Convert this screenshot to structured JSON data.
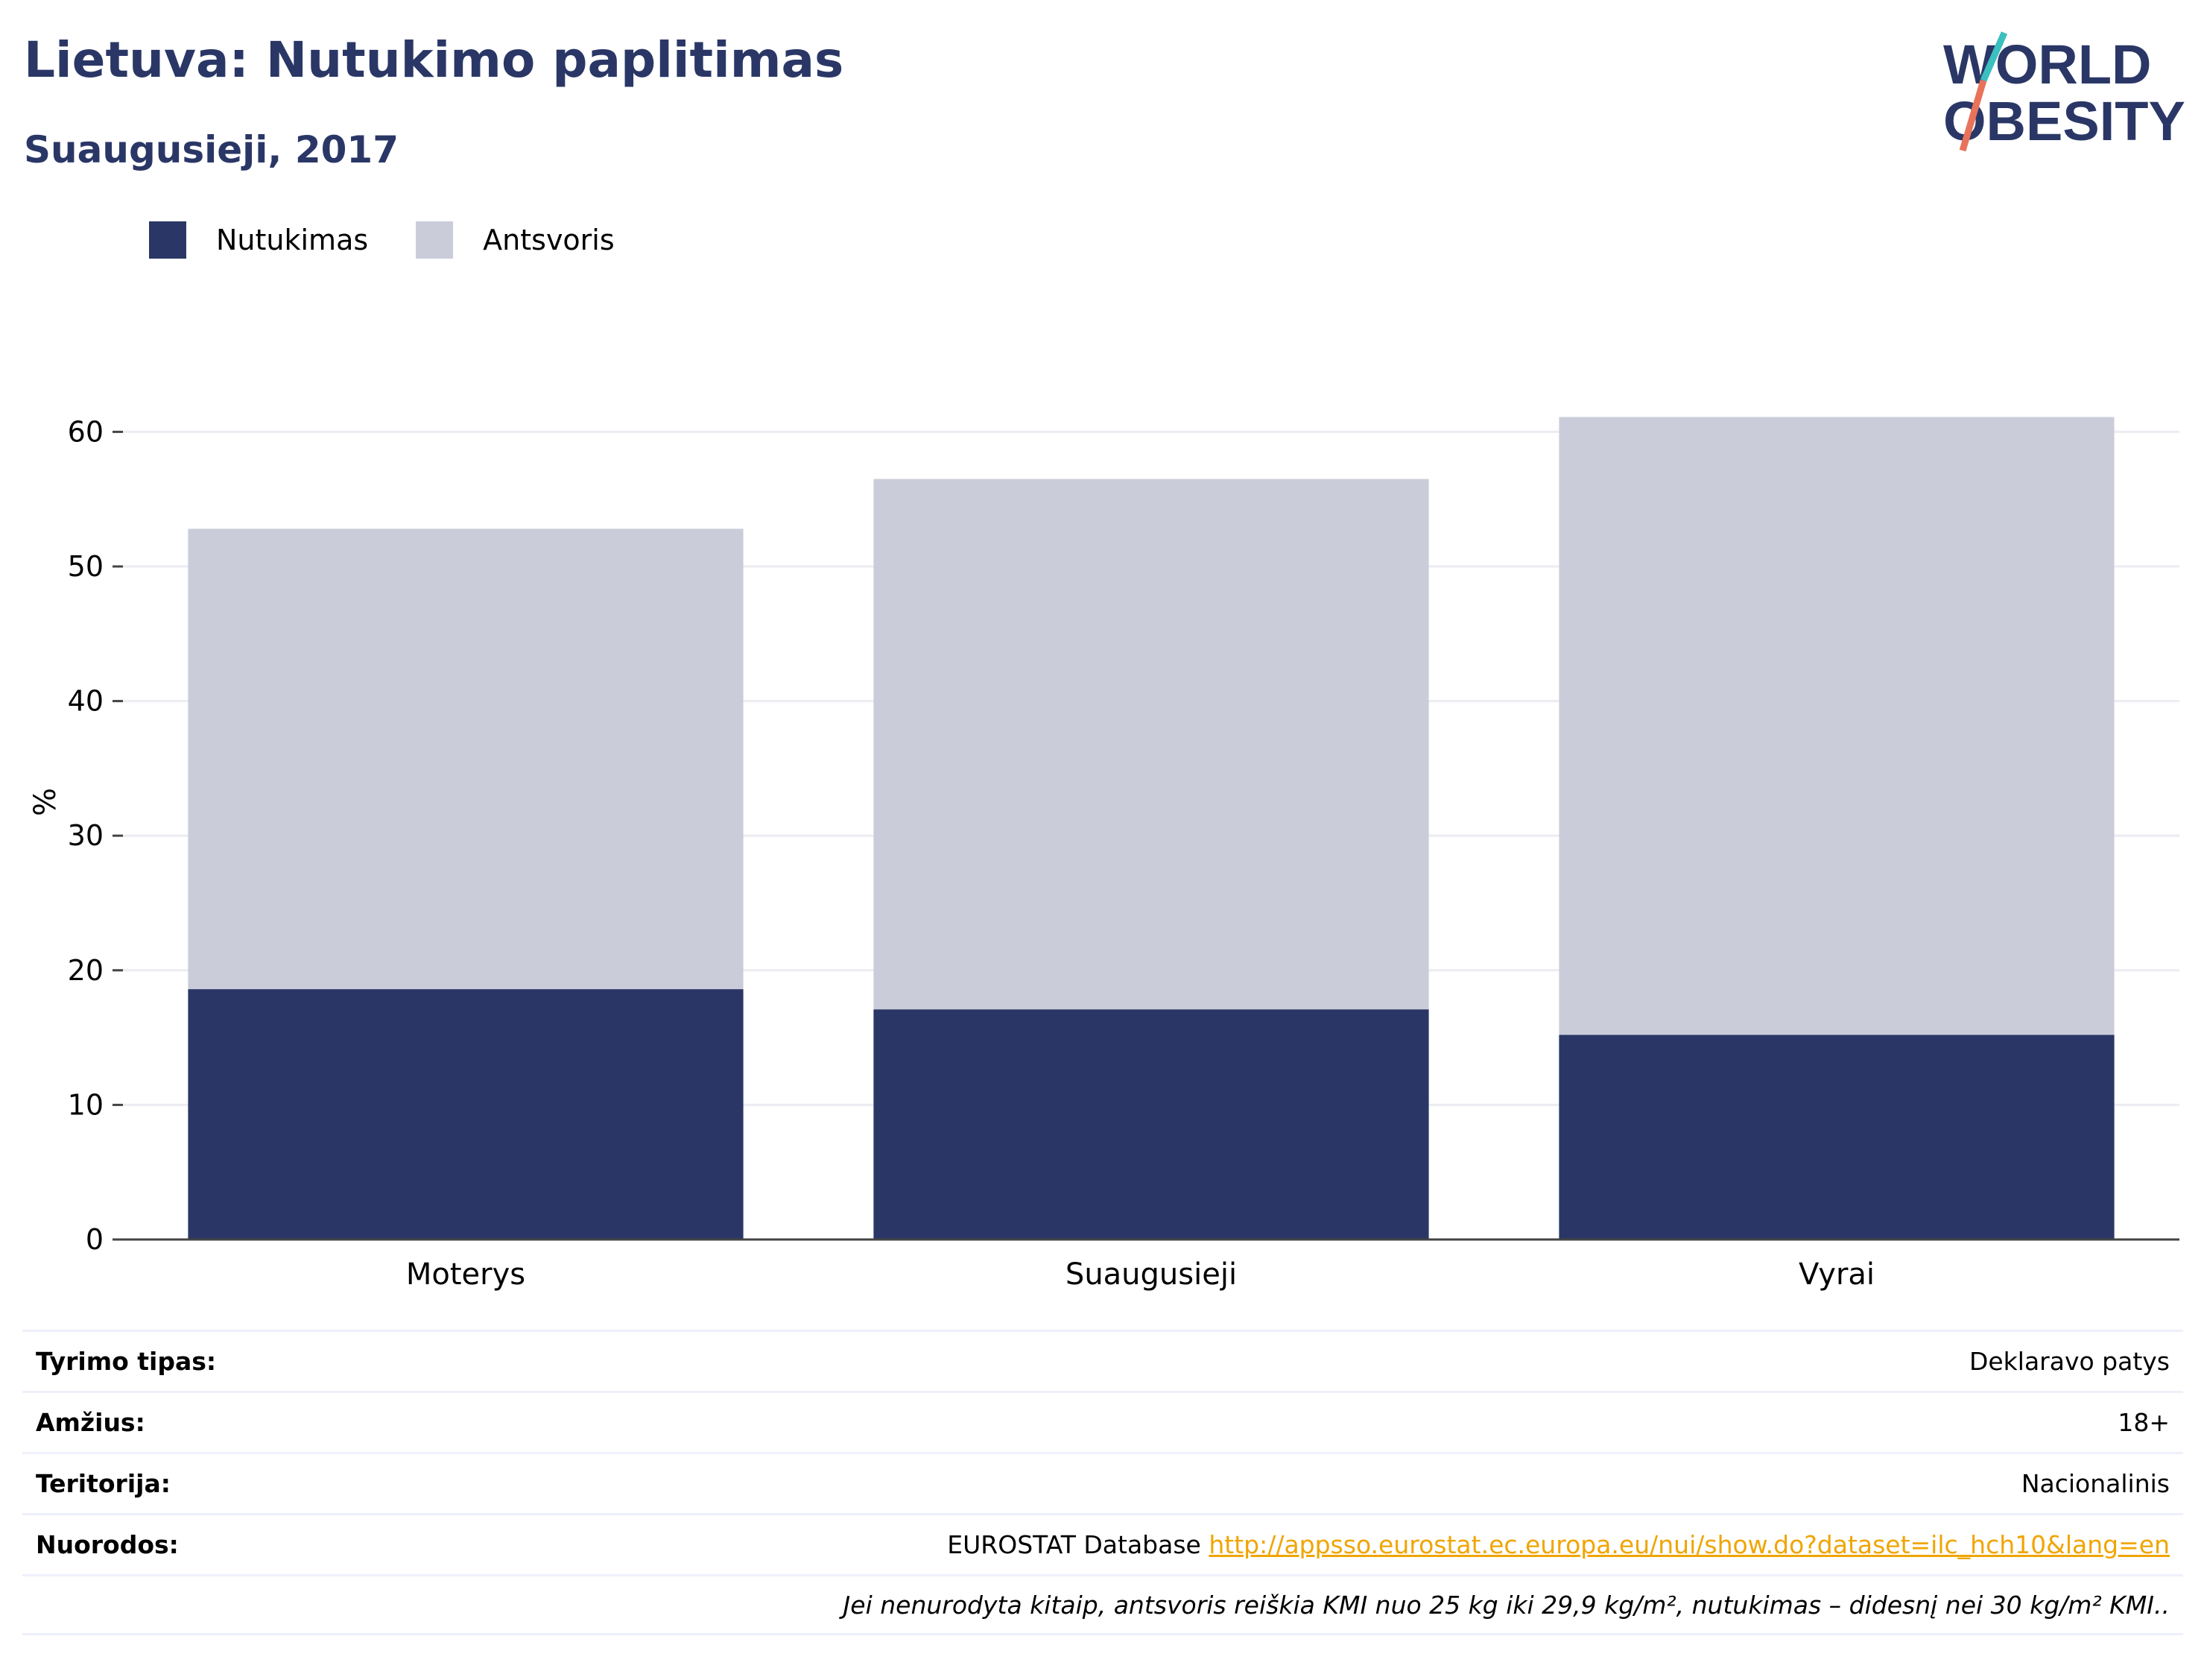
{
  "header": {
    "title": "Lietuva: Nutukimo paplitimas",
    "subtitle": "Suaugusieji, 2017"
  },
  "logo": {
    "line1": "WORLD",
    "line2": "OBESITY",
    "colors": {
      "text": "#2a3766",
      "slash_top": "#3bbfbf",
      "slash_bottom": "#e8735a"
    }
  },
  "legend": [
    {
      "label": "Nutukimas",
      "color": "#2a3766"
    },
    {
      "label": "Antsvoris",
      "color": "#cacdd9"
    }
  ],
  "chart_data": {
    "type": "bar",
    "stacked": true,
    "categories": [
      "Moterys",
      "Suaugusieji",
      "Vyrai"
    ],
    "series": [
      {
        "name": "Nutukimas",
        "color": "#2a3766",
        "values": [
          18.6,
          17.1,
          15.2
        ]
      },
      {
        "name": "Antsvoris",
        "color": "#cacdd9",
        "values": [
          34.2,
          39.4,
          45.9
        ]
      }
    ],
    "ylabel": "%",
    "xlabel": "",
    "ylim": [
      0,
      65
    ],
    "yticks": [
      0,
      10,
      20,
      30,
      40,
      50,
      60
    ],
    "grid": true,
    "legend_position": "top-left"
  },
  "info_table": [
    {
      "label": "Tyrimo tipas:",
      "value": "Deklaravo patys"
    },
    {
      "label": "Amžius:",
      "value": "18+"
    },
    {
      "label": "Teritorija:",
      "value": "Nacionalinis"
    },
    {
      "label": "Nuorodos:",
      "value": "EUROSTAT Database ",
      "link": "http://appsso.eurostat.ec.europa.eu/nui/show.do?dataset=ilc_hch10&lang=en"
    }
  ],
  "footnote": "Jei nenurodyta kitaip, antsvoris reiškia KMI nuo 25 kg iki 29,9 kg/m², nutukimas – didesnį nei 30 kg/m² KMI..",
  "colors": {
    "link": "#f0a500",
    "grid": "#ececf2",
    "axis": "#444444"
  }
}
